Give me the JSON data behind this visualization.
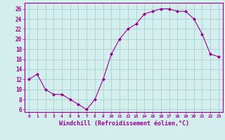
{
  "x": [
    0,
    1,
    2,
    3,
    4,
    5,
    6,
    7,
    8,
    9,
    10,
    11,
    12,
    13,
    14,
    15,
    16,
    17,
    18,
    19,
    20,
    21,
    22,
    23
  ],
  "y": [
    12,
    13,
    10,
    9,
    9,
    8,
    7,
    6,
    8,
    12,
    17,
    20,
    22,
    23,
    25,
    25.5,
    26,
    26,
    25.5,
    25.5,
    24,
    21,
    17,
    16.5
  ],
  "line_color": "#990099",
  "marker": "D",
  "marker_size": 2.0,
  "bg_color": "#d4eeee",
  "grid_color": "#a0cccc",
  "xlabel": "Windchill (Refroidissement éolien,°C)",
  "xlabel_fontsize": 6.0,
  "xtick_labels": [
    "0",
    "1",
    "2",
    "3",
    "4",
    "5",
    "6",
    "7",
    "8",
    "9",
    "10",
    "11",
    "12",
    "13",
    "14",
    "15",
    "16",
    "17",
    "18",
    "19",
    "20",
    "21",
    "22",
    "23"
  ],
  "ytick_values": [
    6,
    8,
    10,
    12,
    14,
    16,
    18,
    20,
    22,
    24,
    26
  ],
  "ylim": [
    5.5,
    27.2
  ],
  "xlim": [
    -0.5,
    23.5
  ],
  "tick_color": "#990099",
  "tick_label_color": "#990099",
  "spine_color": "#990099"
}
